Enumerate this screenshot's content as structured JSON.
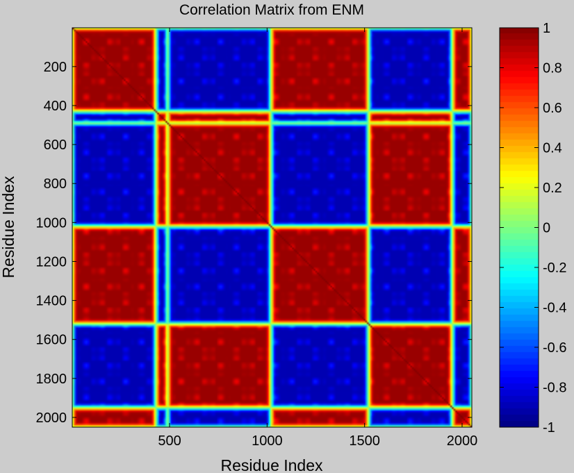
{
  "chart_data": {
    "type": "heatmap",
    "title": "Correlation Matrix from ENM",
    "xlabel": "Residue Index",
    "ylabel": "Residue Index",
    "x_range": [
      1,
      2050
    ],
    "y_range": [
      1,
      2050
    ],
    "x_ticks": [
      500,
      1000,
      1500,
      2000
    ],
    "y_ticks": [
      200,
      400,
      600,
      800,
      1000,
      1200,
      1400,
      1600,
      1800,
      2000
    ],
    "y_direction": "reversed",
    "colormap": "jet",
    "clim": [
      -1,
      1
    ],
    "colorbar_ticks": [
      1,
      0.8,
      0.6,
      0.4,
      0.2,
      0,
      -0.2,
      -0.4,
      -0.6,
      -0.8,
      -1
    ],
    "domain_groups": [
      {
        "start": 1,
        "end": 430,
        "group": "A"
      },
      {
        "start": 430,
        "end": 490,
        "group": "B"
      },
      {
        "start": 490,
        "end": 1020,
        "group": "B"
      },
      {
        "start": 1020,
        "end": 1520,
        "group": "A"
      },
      {
        "start": 1520,
        "end": 1950,
        "group": "B"
      },
      {
        "start": 1950,
        "end": 2050,
        "group": "A"
      }
    ],
    "block_correlation": {
      "same_group": 0.95,
      "different_group": -0.9
    },
    "grid": false
  }
}
